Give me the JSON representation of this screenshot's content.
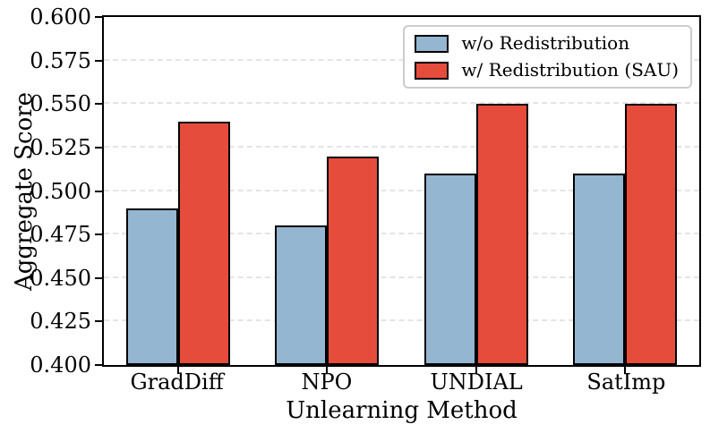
{
  "chart_data": {
    "type": "bar",
    "title": "",
    "xlabel": "Unlearning Method",
    "ylabel": "Aggregate Score",
    "categories": [
      "GradDiff",
      "NPO",
      "UNDIAL",
      "SatImp"
    ],
    "series": [
      {
        "name": "w/o Redistribution",
        "color": "#94b6d0",
        "values": [
          0.49,
          0.48,
          0.51,
          0.51
        ]
      },
      {
        "name": "w/ Redistribution (SAU)",
        "color": "#e64c3c",
        "values": [
          0.54,
          0.52,
          0.55,
          0.55
        ]
      }
    ],
    "ylim": [
      0.4,
      0.6
    ],
    "ytick_labels": [
      "0.400",
      "0.425",
      "0.450",
      "0.475",
      "0.500",
      "0.525",
      "0.550",
      "0.575",
      "0.600"
    ],
    "grid": "horizontal-dashed",
    "grid_color": "#e4e4e4",
    "bar_edge_color": "#000000",
    "legend_position": "upper-right"
  }
}
